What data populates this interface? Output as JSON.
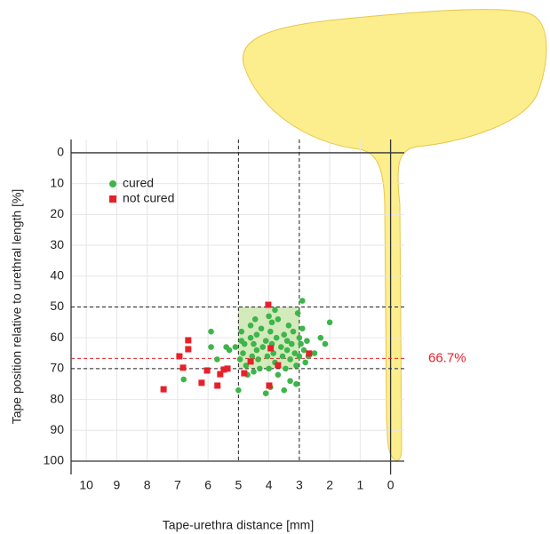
{
  "chart_data": {
    "type": "scatter",
    "x_label": "Tape-urethra distance [mm]",
    "y_label": "Tape position relative to urethral length [%]",
    "xlim": [
      10.5,
      -0.45
    ],
    "ylim": [
      -4.3,
      100
    ],
    "xticks": [
      10,
      9,
      8,
      7,
      6,
      5,
      4,
      3,
      2,
      1,
      0
    ],
    "yticks": [
      0,
      10,
      20,
      30,
      40,
      50,
      60,
      70,
      80,
      90,
      100
    ],
    "grid": true,
    "legend": "top-left",
    "highlight": {
      "x": [
        5,
        3
      ],
      "y": [
        50,
        70
      ],
      "color": "#b5dc8e"
    },
    "annotation": {
      "value": 66.7,
      "label": "66.7%",
      "color": "#e8202a"
    },
    "series": [
      {
        "name": "cured",
        "color": "#3db54a",
        "marker": "circle",
        "x": [
          6.8,
          5.9,
          5.7,
          5.4,
          5.3,
          5.1,
          5,
          4.95,
          4.9,
          4.9,
          4.85,
          4.8,
          4.75,
          4.7,
          4.6,
          4.6,
          4.55,
          4.5,
          4.5,
          4.45,
          4.4,
          4.4,
          4.35,
          4.3,
          4.25,
          4.2,
          4.1,
          4.1,
          4.05,
          4.0,
          3.95,
          3.95,
          3.9,
          3.9,
          3.85,
          3.8,
          3.75,
          3.7,
          3.7,
          3.6,
          3.55,
          3.5,
          3.5,
          3.45,
          3.4,
          3.4,
          3.35,
          3.3,
          3.3,
          3.25,
          3.2,
          3.15,
          3.1,
          3.1,
          3.05,
          3.0,
          3.0,
          2.95,
          2.9,
          2.9,
          2.85,
          2.8,
          2.75,
          2.7,
          2.5,
          2.3,
          2.15,
          2.0,
          3.8,
          4.0,
          5.9
        ],
        "values": [
          73.5,
          58,
          67,
          63,
          64,
          63,
          77,
          67,
          58,
          61,
          65,
          62,
          69,
          72,
          56,
          60,
          66,
          62,
          71,
          54,
          59,
          64,
          67,
          70,
          57,
          63,
          78,
          61,
          66,
          70,
          76,
          58,
          55,
          62,
          65,
          68,
          60,
          72,
          54,
          63,
          66,
          77,
          59,
          70,
          61,
          64,
          56,
          67,
          74,
          62,
          58,
          65,
          69,
          75,
          52,
          60,
          66,
          62,
          48,
          57,
          64,
          68,
          61,
          66,
          65,
          60,
          62,
          55,
          51,
          53,
          63
        ]
      },
      {
        "name": "not cured",
        "color": "#e8202a",
        "marker": "square",
        "x": [
          7.46,
          6.94,
          6.82,
          6.65,
          6.65,
          6.21,
          6.03,
          5.69,
          5.6,
          5.48,
          5.36,
          4.81,
          4.6,
          4.02,
          3.94,
          3.99,
          3.7,
          2.68
        ],
        "values": [
          76.7,
          66.0,
          69.7,
          60.8,
          63.7,
          74.6,
          70.6,
          75.5,
          71.8,
          70.3,
          70.0,
          71.5,
          67.7,
          49.3,
          63.4,
          75.5,
          68.9,
          65.1
        ]
      }
    ]
  }
}
